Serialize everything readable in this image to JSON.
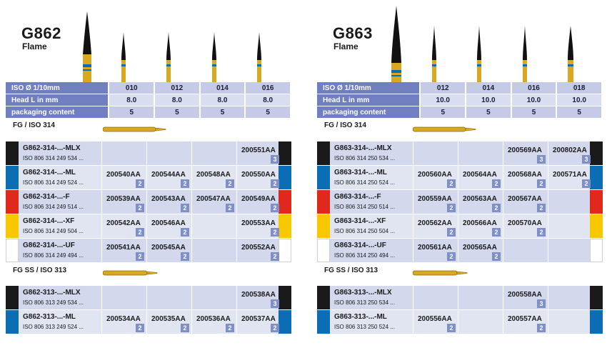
{
  "colors": {
    "black": "#1a1a1a",
    "blue": "#0b6db3",
    "red": "#e0291c",
    "yellow": "#f7c800",
    "white": "#ffffff"
  },
  "panels": [
    {
      "model": "G862",
      "shape": "Flame",
      "spec": {
        "labels": [
          "ISO Ø 1/10mm",
          "Head L in mm",
          "packaging content"
        ],
        "iso": [
          "010",
          "012",
          "014",
          "016"
        ],
        "head": [
          "8.0",
          "8.0",
          "8.0",
          "8.0"
        ],
        "pack": [
          "5",
          "5",
          "5",
          "5"
        ]
      },
      "sections": [
        {
          "title": "FG / ISO 314",
          "rows": [
            {
              "color": "black",
              "name": "G862-314-...-MLX",
              "iso": "ISO 806 314 249 534 ...",
              "cells": [
                {
                  "code": "",
                  "pack": ""
                },
                {
                  "code": "",
                  "pack": ""
                },
                {
                  "code": "",
                  "pack": ""
                },
                {
                  "code": "200551AA",
                  "pack": "3"
                }
              ]
            },
            {
              "color": "blue",
              "name": "G862-314-...-ML",
              "iso": "ISO 806 314 249 524 ...",
              "cells": [
                {
                  "code": "200540AA",
                  "pack": "2"
                },
                {
                  "code": "200544AA",
                  "pack": "2"
                },
                {
                  "code": "200548AA",
                  "pack": "2"
                },
                {
                  "code": "200550AA",
                  "pack": "2"
                }
              ]
            },
            {
              "color": "red",
              "name": "G862-314-...-F",
              "iso": "ISO 806 314 249 514 ...",
              "cells": [
                {
                  "code": "200539AA",
                  "pack": "2"
                },
                {
                  "code": "200543AA",
                  "pack": "2"
                },
                {
                  "code": "200547AA",
                  "pack": "2"
                },
                {
                  "code": "200549AA",
                  "pack": "2"
                }
              ]
            },
            {
              "color": "yellow",
              "name": "G862-314-...-XF",
              "iso": "ISO 806 314 249 504 ...",
              "cells": [
                {
                  "code": "200542AA",
                  "pack": "2"
                },
                {
                  "code": "200546AA",
                  "pack": "2"
                },
                {
                  "code": "",
                  "pack": ""
                },
                {
                  "code": "200553AA",
                  "pack": "2"
                }
              ]
            },
            {
              "color": "white",
              "name": "G862-314-...-UF",
              "iso": "ISO 806 314 249 494 ...",
              "cells": [
                {
                  "code": "200541AA",
                  "pack": "2"
                },
                {
                  "code": "200545AA",
                  "pack": "2"
                },
                {
                  "code": "",
                  "pack": ""
                },
                {
                  "code": "200552AA",
                  "pack": "2"
                }
              ]
            }
          ]
        },
        {
          "title": "FG SS / ISO 313",
          "rows": [
            {
              "color": "black",
              "name": "G862-313-...-MLX",
              "iso": "ISO 806 313 249 534 ...",
              "cells": [
                {
                  "code": "",
                  "pack": ""
                },
                {
                  "code": "",
                  "pack": ""
                },
                {
                  "code": "",
                  "pack": ""
                },
                {
                  "code": "200538AA",
                  "pack": "3"
                }
              ]
            },
            {
              "color": "blue",
              "name": "G862-313-...-ML",
              "iso": "ISO 806 313 249 524 ...",
              "cells": [
                {
                  "code": "200534AA",
                  "pack": "2"
                },
                {
                  "code": "200535AA",
                  "pack": "2"
                },
                {
                  "code": "200536AA",
                  "pack": "2"
                },
                {
                  "code": "200537AA",
                  "pack": "2"
                }
              ]
            }
          ]
        }
      ]
    },
    {
      "model": "G863",
      "shape": "Flame",
      "spec": {
        "labels": [
          "ISO Ø 1/10mm",
          "Head L in mm",
          "packaging content"
        ],
        "iso": [
          "012",
          "014",
          "016",
          "018"
        ],
        "head": [
          "10.0",
          "10.0",
          "10.0",
          "10.0"
        ],
        "pack": [
          "5",
          "5",
          "5",
          "5"
        ]
      },
      "sections": [
        {
          "title": "FG / ISO 314",
          "rows": [
            {
              "color": "black",
              "name": "G863-314-...-MLX",
              "iso": "ISO 806 314 250 534 ...",
              "cells": [
                {
                  "code": "",
                  "pack": ""
                },
                {
                  "code": "",
                  "pack": ""
                },
                {
                  "code": "200569AA",
                  "pack": "3"
                },
                {
                  "code": "200802AA",
                  "pack": "3"
                }
              ]
            },
            {
              "color": "blue",
              "name": "G863-314-...-ML",
              "iso": "ISO 806 314 250 524 ...",
              "cells": [
                {
                  "code": "200560AA",
                  "pack": "2"
                },
                {
                  "code": "200564AA",
                  "pack": "2"
                },
                {
                  "code": "200568AA",
                  "pack": "2"
                },
                {
                  "code": "200571AA",
                  "pack": "2"
                }
              ]
            },
            {
              "color": "red",
              "name": "G863-314-...-F",
              "iso": "ISO 806 314 250 514 ...",
              "cells": [
                {
                  "code": "200559AA",
                  "pack": "2"
                },
                {
                  "code": "200563AA",
                  "pack": "2"
                },
                {
                  "code": "200567AA",
                  "pack": "2"
                },
                {
                  "code": "",
                  "pack": ""
                }
              ]
            },
            {
              "color": "yellow",
              "name": "G863-314-...-XF",
              "iso": "ISO 806 314 250 504 ...",
              "cells": [
                {
                  "code": "200562AA",
                  "pack": "2"
                },
                {
                  "code": "200566AA",
                  "pack": "2"
                },
                {
                  "code": "200570AA",
                  "pack": "2"
                },
                {
                  "code": "",
                  "pack": ""
                }
              ]
            },
            {
              "color": "white",
              "name": "G863-314-...-UF",
              "iso": "ISO 806 314 250 494 ...",
              "cells": [
                {
                  "code": "200561AA",
                  "pack": "2"
                },
                {
                  "code": "200565AA",
                  "pack": "2"
                },
                {
                  "code": "",
                  "pack": ""
                },
                {
                  "code": "",
                  "pack": ""
                }
              ]
            }
          ]
        },
        {
          "title": "FG SS / ISO 313",
          "rows": [
            {
              "color": "black",
              "name": "G863-313-...-MLX",
              "iso": "ISO 806 313 250 534 ...",
              "cells": [
                {
                  "code": "",
                  "pack": ""
                },
                {
                  "code": "",
                  "pack": ""
                },
                {
                  "code": "200558AA",
                  "pack": "3"
                },
                {
                  "code": "",
                  "pack": ""
                }
              ]
            },
            {
              "color": "blue",
              "name": "G863-313-...-ML",
              "iso": "ISO 806 313 250 524 ...",
              "cells": [
                {
                  "code": "200556AA",
                  "pack": "2"
                },
                {
                  "code": "",
                  "pack": ""
                },
                {
                  "code": "200557AA",
                  "pack": "2"
                },
                {
                  "code": "",
                  "pack": ""
                }
              ]
            }
          ]
        }
      ]
    }
  ]
}
